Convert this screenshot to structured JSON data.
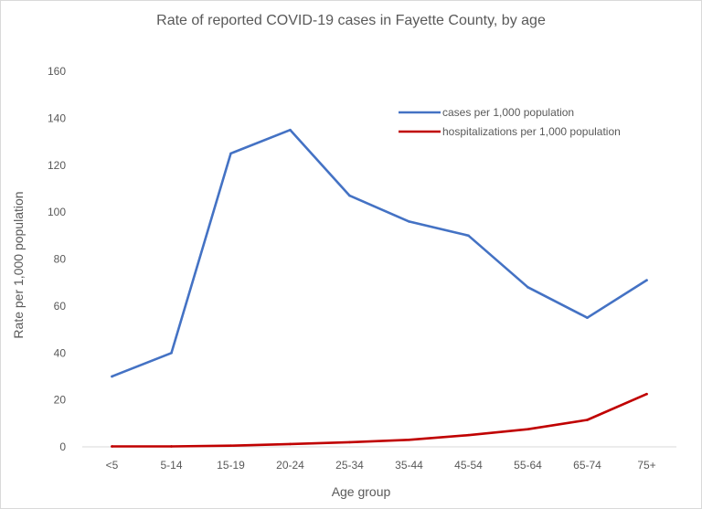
{
  "chart_data": {
    "type": "line",
    "title": "Rate of reported COVID-19 cases in Fayette County, by age",
    "xlabel": "Age group",
    "ylabel": "Rate per 1,000 population",
    "categories": [
      "<5",
      "5-14",
      "15-19",
      "20-24",
      "25-34",
      "35-44",
      "45-54",
      "55-64",
      "65-74",
      "75+"
    ],
    "ylim": [
      0,
      160
    ],
    "yticks": [
      0,
      20,
      40,
      60,
      80,
      100,
      120,
      140,
      160
    ],
    "grid": false,
    "legend_position": "top-right",
    "series": [
      {
        "name": "cases per 1,000 population",
        "color": "#4472c4",
        "values": [
          30,
          40,
          125,
          135,
          107,
          96,
          90,
          68,
          55,
          71
        ]
      },
      {
        "name": "hospitalizations per 1,000 population",
        "color": "#c00000",
        "values": [
          0.2,
          0.2,
          0.5,
          1.2,
          2,
          3,
          5,
          7.5,
          11.5,
          22.5
        ]
      }
    ]
  }
}
